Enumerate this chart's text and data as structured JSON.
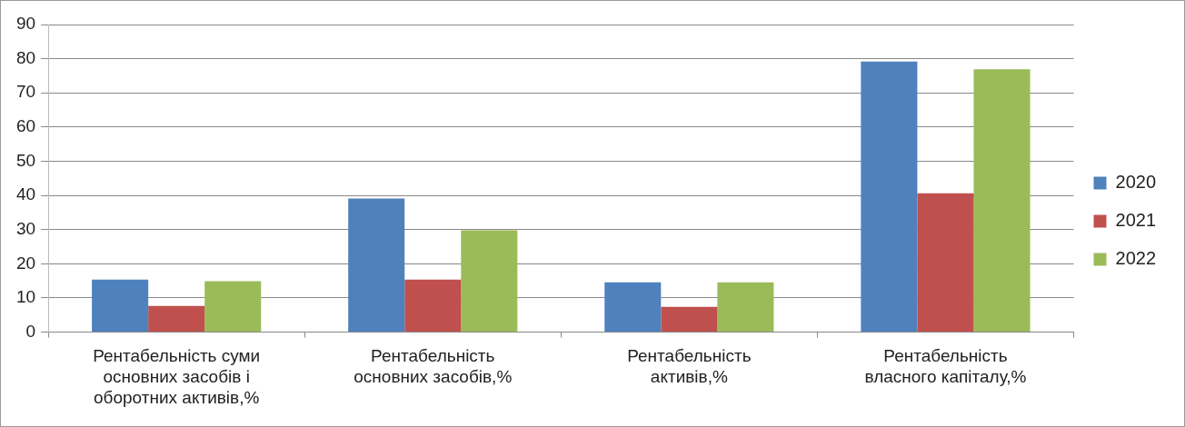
{
  "chart_data": {
    "type": "bar",
    "categories": [
      "Рентабельність суми основних засобів і оборотних активів,%",
      "Рентабельність основних засобів,%",
      "Рентабельність активів,%",
      "Рентабельність власного капіталу,%"
    ],
    "series": [
      {
        "name": "2020",
        "color": "#4f81bd",
        "values": [
          15.4,
          39.1,
          14.6,
          79.2
        ]
      },
      {
        "name": "2021",
        "color": "#c0504d",
        "values": [
          7.7,
          15.4,
          7.4,
          40.6
        ]
      },
      {
        "name": "2022",
        "color": "#9bbb59",
        "values": [
          14.9,
          29.8,
          14.6,
          76.9
        ]
      }
    ],
    "ylim": [
      0,
      90
    ],
    "yticks": [
      0,
      10,
      20,
      30,
      40,
      50,
      60,
      70,
      80,
      90
    ],
    "grid": "y",
    "legend": "right"
  }
}
